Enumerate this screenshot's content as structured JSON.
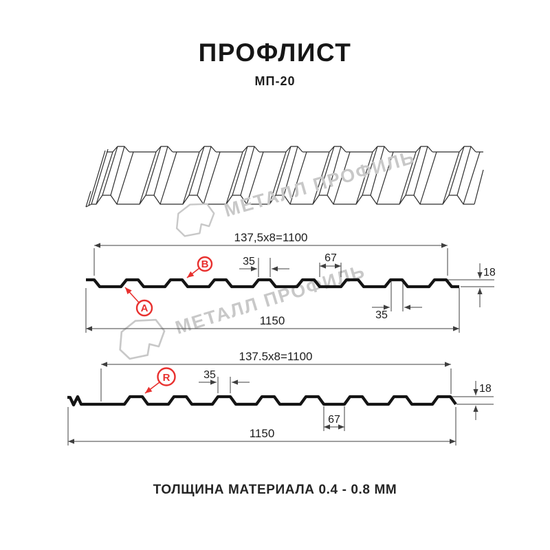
{
  "header": {
    "title": "ПРОФЛИСТ",
    "subtitle": "МП-20"
  },
  "footer": {
    "text": "ТОЛЩИНА МАТЕРИАЛА 0.4 - 0.8 ММ"
  },
  "watermark": {
    "text": "МЕТАЛЛ ПРОФИЛЬ"
  },
  "colors": {
    "accent_red": "#e8302e",
    "profile_line": "#141414",
    "dimension_line": "#3f3f3f",
    "watermark_gray": "#c8c8c8"
  },
  "section_top": {
    "dim_width_formula": "137,5x8=1100",
    "dim_total": "1150",
    "dim_crest": "35",
    "dim_valley": "67",
    "dim_height": "18",
    "dim_crest_bottom": "35",
    "label_a": "A",
    "label_b": "B"
  },
  "section_bottom": {
    "dim_width_formula": "137.5x8=1100",
    "dim_total": "1150",
    "dim_crest": "35",
    "dim_valley": "67",
    "dim_height": "18",
    "label_r": "R"
  }
}
